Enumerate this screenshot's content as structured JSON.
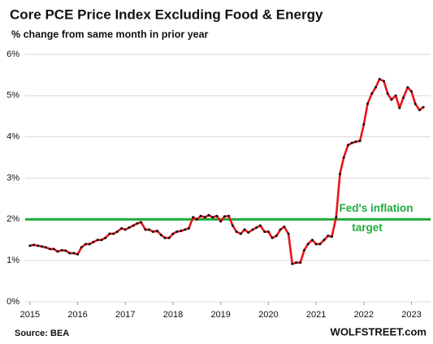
{
  "chart_data": {
    "type": "line",
    "title": "Core PCE Price Index Excluding Food & Energy",
    "subtitle": "% change from same month in prior year",
    "source": "Source: BEA",
    "brand": "WOLFSTREET.com",
    "annotation": [
      "Fed's inflation",
      "target"
    ],
    "target_line": {
      "value": 2,
      "color": "#1fab3c"
    },
    "color": "#e8141c",
    "marker_color": "#111111",
    "grid": true,
    "xlim": [
      2014.9,
      2023.4
    ],
    "xticks": [
      2015,
      2016,
      2017,
      2018,
      2019,
      2020,
      2021,
      2022,
      2023
    ],
    "ylim": [
      0,
      6
    ],
    "yticks": [
      {
        "value": 0,
        "label": "0%"
      },
      {
        "value": 1,
        "label": "1%"
      },
      {
        "value": 2,
        "label": "2%"
      },
      {
        "value": 3,
        "label": "3%"
      },
      {
        "value": 4,
        "label": "4%"
      },
      {
        "value": 5,
        "label": "5%"
      },
      {
        "value": 6,
        "label": "6%"
      }
    ],
    "x": [
      2015.0,
      2015.08,
      2015.17,
      2015.25,
      2015.33,
      2015.42,
      2015.5,
      2015.58,
      2015.67,
      2015.75,
      2015.83,
      2015.92,
      2016.0,
      2016.08,
      2016.17,
      2016.25,
      2016.33,
      2016.42,
      2016.5,
      2016.58,
      2016.67,
      2016.75,
      2016.83,
      2016.92,
      2017.0,
      2017.08,
      2017.17,
      2017.25,
      2017.33,
      2017.42,
      2017.5,
      2017.58,
      2017.67,
      2017.75,
      2017.83,
      2017.92,
      2018.0,
      2018.08,
      2018.17,
      2018.25,
      2018.33,
      2018.42,
      2018.5,
      2018.58,
      2018.67,
      2018.75,
      2018.83,
      2018.92,
      2019.0,
      2019.08,
      2019.17,
      2019.25,
      2019.33,
      2019.42,
      2019.5,
      2019.58,
      2019.67,
      2019.75,
      2019.83,
      2019.92,
      2020.0,
      2020.08,
      2020.17,
      2020.25,
      2020.33,
      2020.42,
      2020.5,
      2020.58,
      2020.67,
      2020.75,
      2020.83,
      2020.92,
      2021.0,
      2021.08,
      2021.17,
      2021.25,
      2021.33,
      2021.42,
      2021.5,
      2021.58,
      2021.67,
      2021.75,
      2021.83,
      2021.92,
      2022.0,
      2022.08,
      2022.17,
      2022.25,
      2022.33,
      2022.42,
      2022.5,
      2022.58,
      2022.67,
      2022.75,
      2022.83,
      2022.92,
      2023.0,
      2023.08,
      2023.17,
      2023.25
    ],
    "values": [
      1.36,
      1.38,
      1.36,
      1.34,
      1.32,
      1.28,
      1.28,
      1.22,
      1.25,
      1.24,
      1.18,
      1.18,
      1.15,
      1.32,
      1.4,
      1.4,
      1.45,
      1.5,
      1.5,
      1.55,
      1.65,
      1.65,
      1.7,
      1.78,
      1.75,
      1.8,
      1.85,
      1.9,
      1.93,
      1.75,
      1.75,
      1.7,
      1.72,
      1.62,
      1.55,
      1.55,
      1.65,
      1.7,
      1.72,
      1.75,
      1.78,
      2.05,
      2.0,
      2.08,
      2.05,
      2.1,
      2.05,
      2.08,
      1.95,
      2.07,
      2.08,
      1.85,
      1.7,
      1.65,
      1.75,
      1.68,
      1.75,
      1.8,
      1.85,
      1.7,
      1.7,
      1.55,
      1.6,
      1.75,
      1.82,
      1.65,
      0.92,
      0.95,
      0.95,
      1.25,
      1.4,
      1.5,
      1.4,
      1.4,
      1.5,
      1.6,
      1.58,
      2.05,
      3.1,
      3.5,
      3.8,
      3.85,
      3.88,
      3.9,
      4.3,
      4.8,
      5.05,
      5.2,
      5.4,
      5.35,
      5.05,
      4.9,
      5.0,
      4.7,
      4.95,
      5.2,
      5.1,
      4.8,
      4.65,
      4.72
    ]
  }
}
